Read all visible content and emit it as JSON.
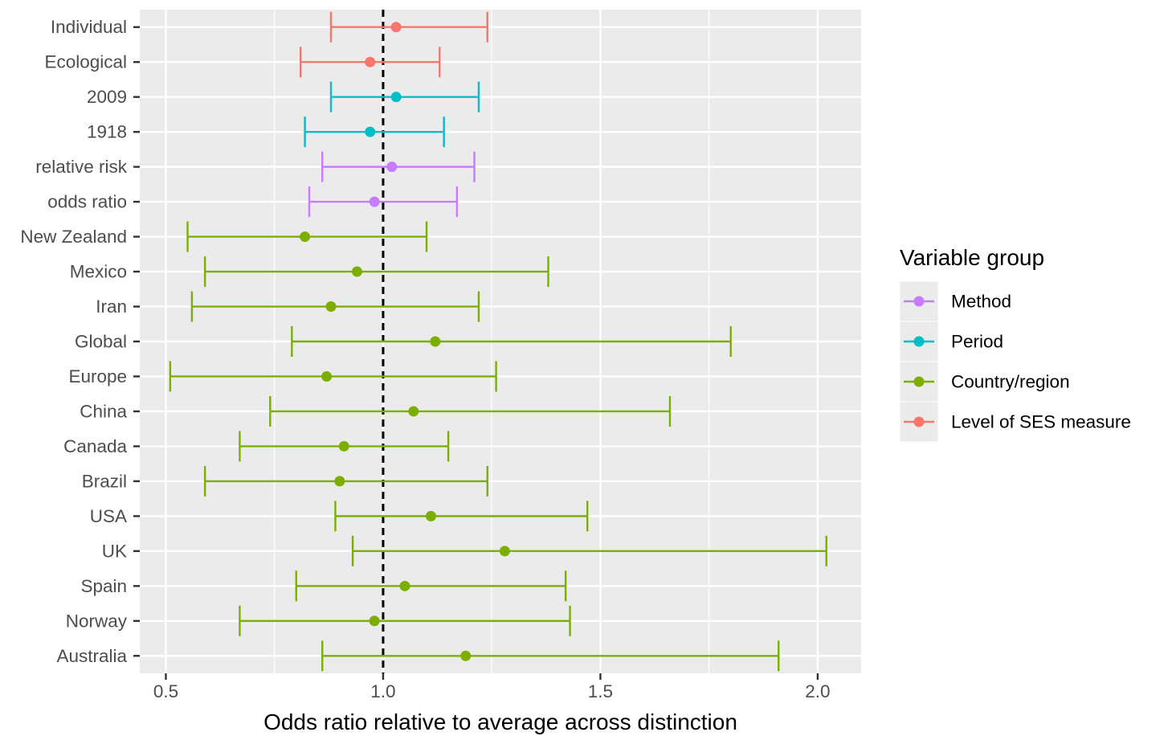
{
  "chart_data": {
    "type": "forest",
    "xlabel": "Odds ratio relative to average across distinction",
    "xlim": [
      0.44,
      2.1
    ],
    "x_ticks": [
      0.5,
      1.0,
      1.5,
      2.0
    ],
    "x_tick_labels": [
      "0.5",
      "1.0",
      "1.5",
      "2.0"
    ],
    "x_minor_ticks": [
      0.75,
      1.25,
      1.75
    ],
    "reference_line": 1.0,
    "grid": true,
    "legend": {
      "title": "Variable group",
      "placement": "right",
      "entries": [
        {
          "name": "Method",
          "color": "#C77CFF"
        },
        {
          "name": "Period",
          "color": "#00BFC4"
        },
        {
          "name": "Country/region",
          "color": "#7CAE00"
        },
        {
          "name": "Level of SES measure",
          "color": "#F8766D"
        }
      ]
    },
    "rows": [
      {
        "label": "Individual",
        "group": "Level of SES measure",
        "estimate": 1.03,
        "lower": 0.88,
        "upper": 1.24
      },
      {
        "label": "Ecological",
        "group": "Level of SES measure",
        "estimate": 0.97,
        "lower": 0.81,
        "upper": 1.13
      },
      {
        "label": "2009",
        "group": "Period",
        "estimate": 1.03,
        "lower": 0.88,
        "upper": 1.22
      },
      {
        "label": "1918",
        "group": "Period",
        "estimate": 0.97,
        "lower": 0.82,
        "upper": 1.14
      },
      {
        "label": "relative risk",
        "group": "Method",
        "estimate": 1.02,
        "lower": 0.86,
        "upper": 1.21
      },
      {
        "label": "odds ratio",
        "group": "Method",
        "estimate": 0.98,
        "lower": 0.83,
        "upper": 1.17
      },
      {
        "label": "New Zealand",
        "group": "Country/region",
        "estimate": 0.82,
        "lower": 0.55,
        "upper": 1.1
      },
      {
        "label": "Mexico",
        "group": "Country/region",
        "estimate": 0.94,
        "lower": 0.59,
        "upper": 1.38
      },
      {
        "label": "Iran",
        "group": "Country/region",
        "estimate": 0.88,
        "lower": 0.56,
        "upper": 1.22
      },
      {
        "label": "Global",
        "group": "Country/region",
        "estimate": 1.12,
        "lower": 0.79,
        "upper": 1.8
      },
      {
        "label": "Europe",
        "group": "Country/region",
        "estimate": 0.87,
        "lower": 0.51,
        "upper": 1.26
      },
      {
        "label": "China",
        "group": "Country/region",
        "estimate": 1.07,
        "lower": 0.74,
        "upper": 1.66
      },
      {
        "label": "Canada",
        "group": "Country/region",
        "estimate": 0.91,
        "lower": 0.67,
        "upper": 1.15
      },
      {
        "label": "Brazil",
        "group": "Country/region",
        "estimate": 0.9,
        "lower": 0.59,
        "upper": 1.24
      },
      {
        "label": "USA",
        "group": "Country/region",
        "estimate": 1.11,
        "lower": 0.89,
        "upper": 1.47
      },
      {
        "label": "UK",
        "group": "Country/region",
        "estimate": 1.28,
        "lower": 0.93,
        "upper": 2.02
      },
      {
        "label": "Spain",
        "group": "Country/region",
        "estimate": 1.05,
        "lower": 0.8,
        "upper": 1.42
      },
      {
        "label": "Norway",
        "group": "Country/region",
        "estimate": 0.98,
        "lower": 0.67,
        "upper": 1.43
      },
      {
        "label": "Australia",
        "group": "Country/region",
        "estimate": 1.19,
        "lower": 0.86,
        "upper": 1.91
      }
    ]
  }
}
